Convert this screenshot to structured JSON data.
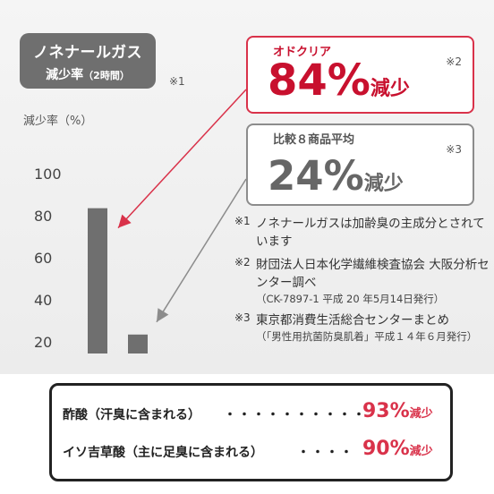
{
  "title": {
    "line1": "ノネナールガス",
    "line2": "減少率",
    "line2_note": "（2時間）",
    "ref": "※1"
  },
  "y_axis_label": "減少率（%）",
  "chart_data": {
    "type": "bar",
    "categories": [
      "オドクリア",
      "比較８商品平均"
    ],
    "values": [
      84,
      24
    ],
    "ylabel": "減少率（%）",
    "ylim": [
      15,
      100
    ],
    "yticks": [
      20,
      40,
      60,
      80,
      100
    ],
    "bar_color": "#6f6f6f",
    "grid": false
  },
  "callouts": [
    {
      "label": "オドクリア",
      "value": "84%",
      "suffix": "減少",
      "ref": "※2",
      "color": "#c8102e"
    },
    {
      "label": "比較８商品平均",
      "value": "24%",
      "suffix": "減少",
      "ref": "※3",
      "color": "#666666"
    }
  ],
  "notes": [
    {
      "mark": "※1",
      "main": "ノネナールガスは加齢臭の主成分とされています",
      "sub": ""
    },
    {
      "mark": "※2",
      "main": "財団法人日本化学繊維検査協会 大阪分析センター調べ",
      "sub": "（CK-7897-1 平成 20 年5月14日発行）"
    },
    {
      "mark": "※3",
      "main": "東京都消費生活総合センターまとめ",
      "sub": "（「男性用抗菌防臭肌着」平成１４年６月発行）"
    }
  ],
  "acids": [
    {
      "name": "酢酸（汗臭に含まれる）",
      "dots": "・・・・・・・・・・",
      "percent": "93%",
      "suffix": "減少"
    },
    {
      "name": "イソ吉草酸（主に足臭に含まれる）",
      "dots": "・・・・",
      "percent": "90%",
      "suffix": "減少"
    }
  ]
}
